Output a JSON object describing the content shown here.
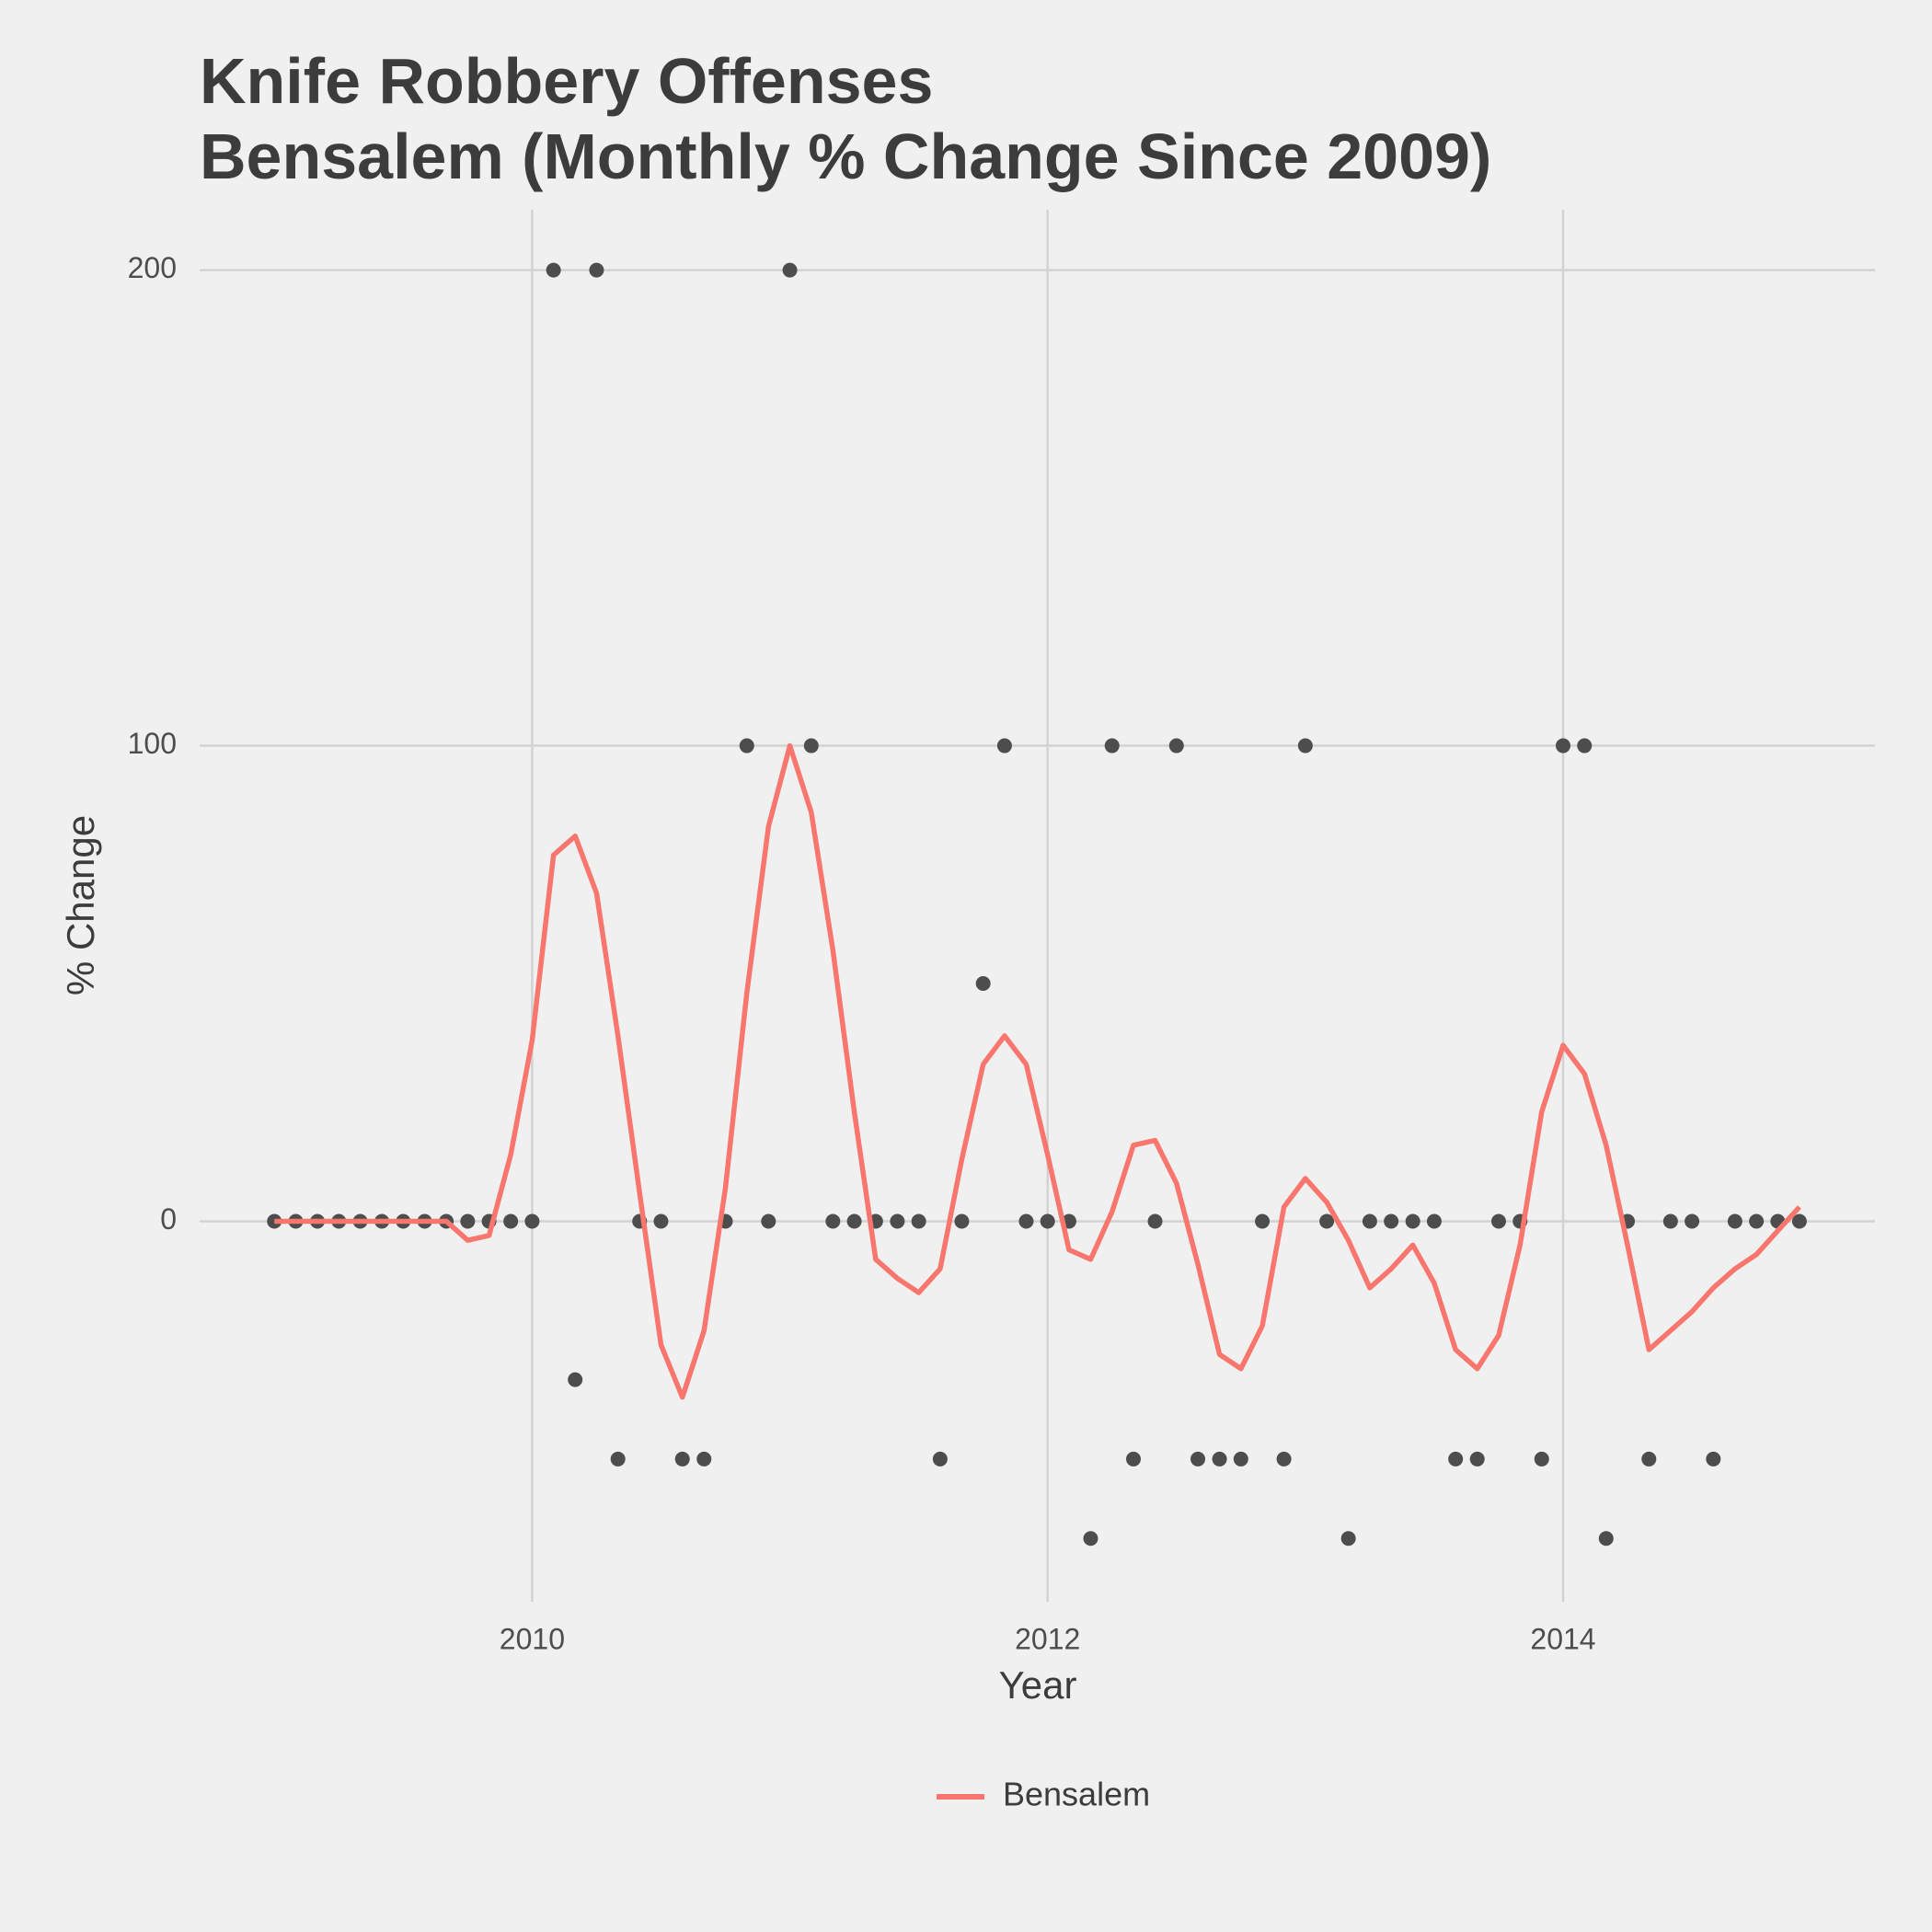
{
  "chart_data": {
    "type": "line",
    "title": "Knife Robbery Offenses",
    "subtitle": "Bensalem (Monthly % Change Since 2009)",
    "x_label": "Year",
    "y_label": "% Change",
    "x": [
      2009,
      2009.083,
      2009.167,
      2009.25,
      2009.333,
      2009.417,
      2009.5,
      2009.583,
      2009.667,
      2009.75,
      2009.833,
      2009.917,
      2010,
      2010.083,
      2010.167,
      2010.25,
      2010.333,
      2010.417,
      2010.5,
      2010.583,
      2010.667,
      2010.75,
      2010.833,
      2010.917,
      2011,
      2011.083,
      2011.167,
      2011.25,
      2011.333,
      2011.417,
      2011.5,
      2011.583,
      2011.667,
      2011.75,
      2011.833,
      2011.917,
      2012,
      2012.083,
      2012.167,
      2012.25,
      2012.333,
      2012.417,
      2012.5,
      2012.583,
      2012.667,
      2012.75,
      2012.833,
      2012.917,
      2013,
      2013.083,
      2013.167,
      2013.25,
      2013.333,
      2013.417,
      2013.5,
      2013.583,
      2013.667,
      2013.75,
      2013.833,
      2013.917,
      2014,
      2014.083,
      2014.167,
      2014.25,
      2014.333,
      2014.417,
      2014.5,
      2014.583,
      2014.667,
      2014.75,
      2014.833,
      2014.917
    ],
    "series": [
      {
        "name": "Bensalem",
        "color": "#f8766d",
        "values": [
          0,
          0,
          0,
          0,
          0,
          0,
          0,
          0,
          0,
          -4,
          -3,
          14,
          38,
          77,
          81,
          69,
          39,
          6,
          -26,
          -37,
          -23,
          7,
          48,
          83,
          100,
          86,
          57,
          23,
          -8,
          -12,
          -15,
          -10,
          13,
          33,
          39,
          33,
          14,
          -6,
          -8,
          2,
          16,
          17,
          8,
          -9,
          -28,
          -31,
          -22,
          3,
          9,
          4,
          -4,
          -14,
          -10,
          -5,
          -13,
          -27,
          -31,
          -24,
          -5,
          23,
          37,
          31,
          16,
          -5,
          -27,
          -23,
          -19,
          -14,
          -10,
          -7,
          -2,
          3
        ]
      }
    ],
    "points": {
      "color": "#4d4d4d",
      "values": [
        0,
        0,
        0,
        0,
        0,
        0,
        0,
        0,
        0,
        0,
        0,
        0,
        0,
        200,
        -33.3,
        200,
        -50,
        0,
        0,
        -50,
        -50,
        0,
        100,
        0,
        200,
        100,
        0,
        0,
        0,
        0,
        0,
        -50,
        0,
        50,
        100,
        0,
        0,
        0,
        -66.7,
        100,
        -50,
        0,
        100,
        -50,
        -50,
        -50,
        0,
        -50,
        100,
        0,
        -66.7,
        0,
        0,
        0,
        0,
        -50,
        -50,
        0,
        0,
        -50,
        100,
        100,
        -66.7,
        0,
        -50,
        0,
        0,
        -50,
        0,
        0,
        0,
        0
      ]
    },
    "xlim": [
      2008.71,
      2015.21
    ],
    "ylim": [
      -80,
      212.7
    ],
    "xticks": [
      2010,
      2012,
      2014
    ],
    "yticks": [
      0,
      100,
      200
    ],
    "grid": true,
    "legend": "bottom"
  }
}
